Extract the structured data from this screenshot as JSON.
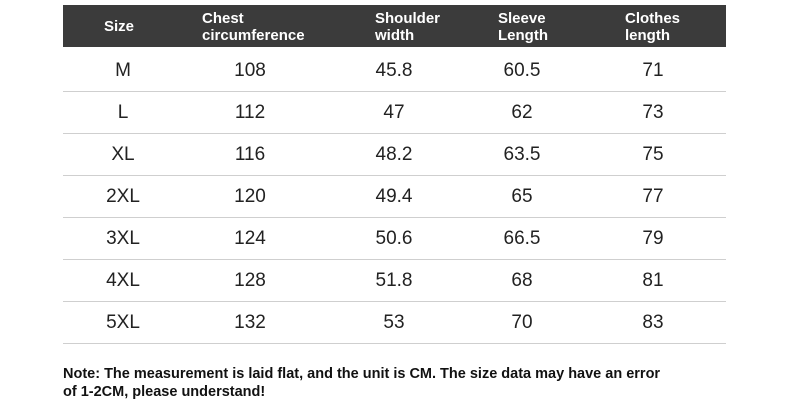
{
  "table": {
    "header": [
      [
        "Size"
      ],
      [
        "Chest",
        "circumference"
      ],
      [
        "Shoulder",
        "width"
      ],
      [
        "Sleeve",
        "Length"
      ],
      [
        "Clothes",
        "length"
      ]
    ],
    "rows": [
      [
        "M",
        "108",
        "45.8",
        "60.5",
        "71"
      ],
      [
        "L",
        "112",
        "47",
        "62",
        "73"
      ],
      [
        "XL",
        "116",
        "48.2",
        "63.5",
        "75"
      ],
      [
        "2XL",
        "120",
        "49.4",
        "65",
        "77"
      ],
      [
        "3XL",
        "124",
        "50.6",
        "66.5",
        "79"
      ],
      [
        "4XL",
        "128",
        "51.8",
        "68",
        "81"
      ],
      [
        "5XL",
        "132",
        "53",
        "70",
        "83"
      ]
    ]
  },
  "note": [
    "Note: The measurement is laid flat, and the unit is CM. The size data may have an error",
    "of 1-2CM, please understand!"
  ]
}
